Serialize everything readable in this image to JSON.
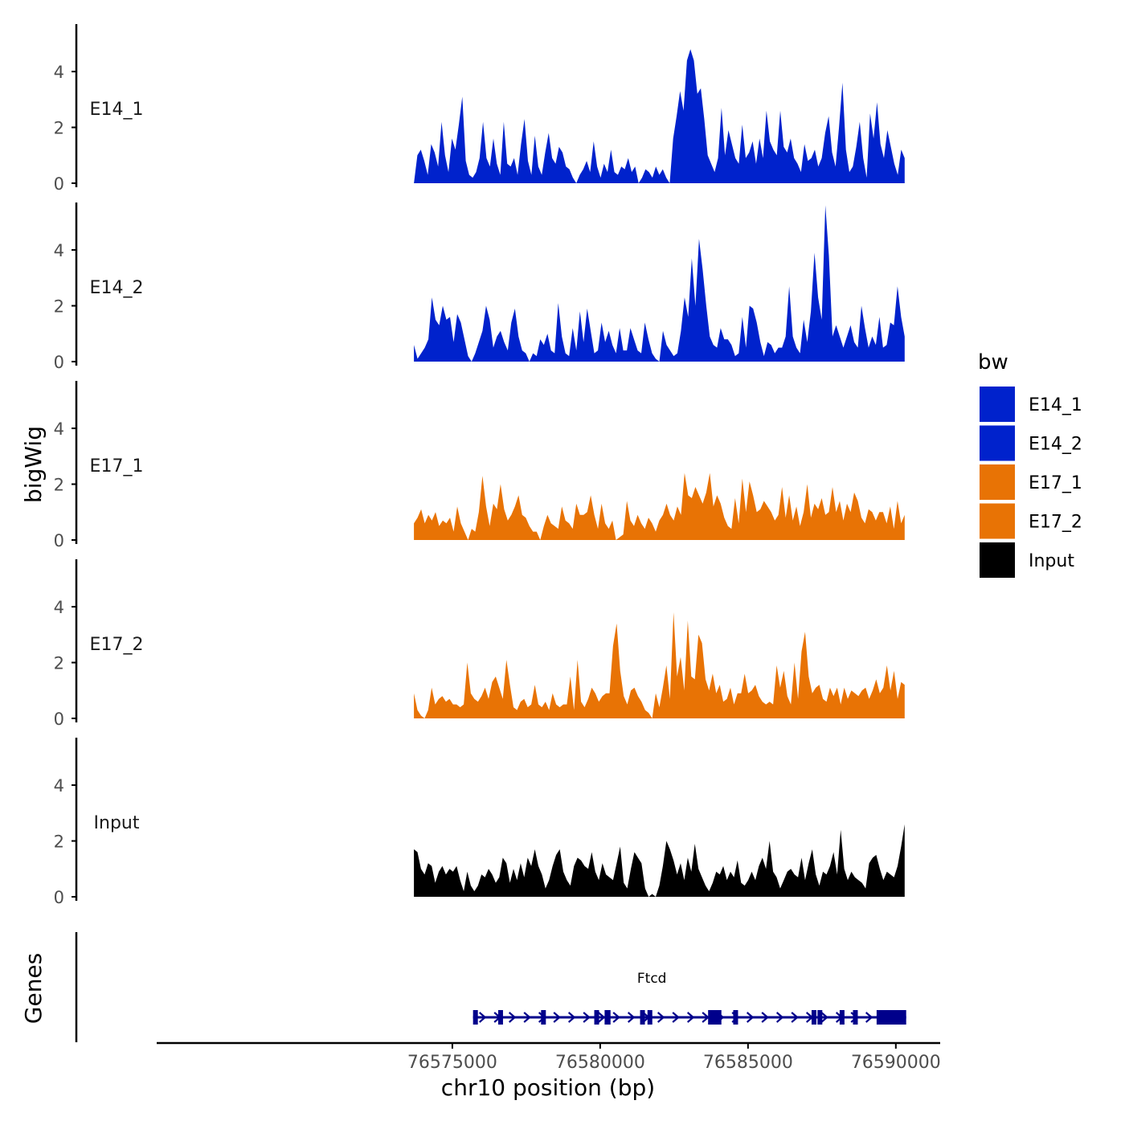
{
  "chart_data": {
    "type": "area",
    "title": "",
    "ylabel": "bigWig",
    "genes_label": "Genes",
    "xlabel": "chr10 position (bp)",
    "xlim": [
      76565000,
      76591500
    ],
    "x_ticks": [
      76575000,
      76580000,
      76585000,
      76590000
    ],
    "x_tick_labels": [
      "76575000",
      "76580000",
      "76585000",
      "76590000"
    ],
    "ylim": [
      0,
      5.7
    ],
    "y_ticks": [
      0,
      2,
      4
    ],
    "y_tick_labels": [
      "0",
      "2",
      "4"
    ],
    "legend": {
      "title": "bw",
      "position": "right",
      "entries": [
        {
          "label": "E14_1",
          "color": "#0022cc"
        },
        {
          "label": "E14_2",
          "color": "#0022cc"
        },
        {
          "label": "E17_1",
          "color": "#e87305"
        },
        {
          "label": "E17_2",
          "color": "#e87305"
        },
        {
          "label": "Input",
          "color": "#000000"
        }
      ]
    },
    "track_range": [
      76573700,
      76590300
    ],
    "series": [
      {
        "name": "E14_1",
        "color": "#0022cc",
        "values": [
          0,
          1.0,
          1.2,
          0.8,
          0.3,
          1.4,
          1.1,
          0.6,
          2.2,
          1.0,
          0.4,
          1.6,
          1.2,
          2.1,
          3.1,
          0.8,
          0.3,
          0.2,
          0.4,
          0.9,
          2.2,
          0.9,
          0.6,
          1.6,
          0.7,
          0.3,
          2.2,
          0.7,
          0.6,
          0.9,
          0.3,
          1.4,
          2.3,
          0.8,
          0.3,
          1.7,
          0.6,
          0.3,
          1.1,
          1.8,
          0.9,
          0.7,
          1.3,
          1.1,
          0.6,
          0.5,
          0.2,
          0,
          0.3,
          0.5,
          0.8,
          0.4,
          1.5,
          0.6,
          0.2,
          0.7,
          0.4,
          1.2,
          0.4,
          0.3,
          0.6,
          0.5,
          0.9,
          0.4,
          0.6,
          0,
          0.2,
          0.5,
          0.4,
          0.2,
          0.6,
          0.3,
          0.5,
          0.2,
          0,
          1.6,
          2.4,
          3.3,
          2.6,
          4.4,
          4.8,
          4.4,
          3.2,
          3.4,
          2.3,
          1.0,
          0.7,
          0.4,
          0.9,
          2.7,
          1.0,
          1.9,
          1.4,
          0.9,
          0.7,
          2.1,
          0.9,
          1.1,
          1.5,
          0.7,
          1.6,
          0.9,
          2.6,
          1.5,
          1.2,
          1.0,
          2.6,
          1.3,
          1.1,
          1.6,
          0.9,
          0.7,
          0.4,
          1.4,
          0.8,
          0.9,
          1.2,
          0.6,
          0.9,
          1.8,
          2.4,
          1.1,
          0.6,
          2.0,
          3.6,
          1.2,
          0.4,
          0.6,
          1.3,
          2.2,
          0.9,
          0.2,
          2.5,
          1.6,
          2.9,
          1.4,
          0.9,
          1.9,
          1.3,
          0.7,
          0.3,
          1.2,
          0.9
        ]
      },
      {
        "name": "E14_2",
        "color": "#0022cc",
        "values": [
          0.6,
          0.1,
          0.3,
          0.5,
          0.8,
          2.3,
          1.5,
          1.3,
          2.0,
          1.5,
          1.6,
          0.7,
          1.7,
          1.4,
          0.8,
          0.2,
          0,
          0.3,
          0.7,
          1.1,
          2.0,
          1.5,
          0.5,
          0.9,
          1.1,
          0.7,
          0.4,
          1.4,
          1.9,
          0.9,
          0.4,
          0.3,
          0,
          0.3,
          0.2,
          0.8,
          0.6,
          1.0,
          0.4,
          0.3,
          2.1,
          0.9,
          0.3,
          0.2,
          1.2,
          0.4,
          1.8,
          0.7,
          1.9,
          1.1,
          0.3,
          0.4,
          1.4,
          0.7,
          1.1,
          0.6,
          0.3,
          1.2,
          0.4,
          0.4,
          1.2,
          0.8,
          0.4,
          0.3,
          1.4,
          0.8,
          0.3,
          0.1,
          0,
          1.1,
          0.6,
          0.4,
          0.2,
          0.3,
          1.1,
          2.3,
          1.6,
          3.7,
          2.0,
          4.4,
          3.3,
          2.0,
          0.9,
          0.6,
          0.5,
          1.2,
          0.8,
          0.8,
          0.6,
          0.2,
          0.3,
          1.6,
          0.5,
          2.0,
          1.9,
          1.4,
          0.7,
          0.2,
          0.7,
          0.6,
          0.3,
          0.5,
          0.5,
          0.9,
          2.7,
          0.9,
          0.5,
          0.3,
          1.5,
          0.7,
          1.8,
          3.9,
          2.3,
          1.5,
          5.6,
          3.8,
          0.9,
          1.3,
          0.9,
          0.5,
          0.9,
          1.3,
          0.7,
          0.5,
          2.0,
          1.2,
          0.5,
          0.9,
          0.6,
          1.6,
          0.5,
          0.6,
          1.4,
          1.3,
          2.7,
          1.6,
          0.9
        ]
      },
      {
        "name": "E17_1",
        "color": "#e87305",
        "values": [
          0.6,
          0.8,
          1.1,
          0.6,
          0.9,
          0.7,
          1.0,
          0.5,
          0.7,
          0.6,
          0.8,
          0.3,
          1.2,
          0.6,
          0.3,
          0,
          0.4,
          0.3,
          1.0,
          2.3,
          1.2,
          0.5,
          1.3,
          1.1,
          2.0,
          1.1,
          0.7,
          0.9,
          1.2,
          1.6,
          0.9,
          0.8,
          0.5,
          0.3,
          0.3,
          0,
          0.5,
          0.9,
          0.6,
          0.5,
          0.4,
          1.2,
          0.7,
          0.6,
          0.4,
          1.3,
          0.9,
          0.9,
          1.0,
          1.6,
          0.9,
          0.4,
          1.3,
          0.6,
          0.4,
          0.7,
          0,
          0.1,
          0.2,
          1.4,
          0.7,
          0.5,
          0.9,
          0.6,
          0.4,
          0.8,
          0.6,
          0.3,
          0.7,
          0.9,
          1.3,
          0.9,
          0.7,
          1.2,
          0.9,
          2.4,
          1.6,
          1.5,
          1.9,
          1.6,
          1.3,
          1.7,
          2.4,
          1.2,
          1.6,
          1.3,
          0.8,
          0.5,
          0.4,
          1.5,
          0.6,
          2.2,
          1.0,
          2.1,
          1.6,
          1.0,
          1.1,
          1.4,
          1.2,
          1.0,
          0.7,
          0.9,
          1.9,
          0.8,
          1.6,
          0.7,
          1.2,
          0.5,
          1.0,
          2.0,
          0.8,
          1.3,
          1.1,
          1.5,
          0.9,
          1.0,
          1.9,
          1.0,
          1.4,
          0.7,
          1.3,
          1.0,
          1.7,
          1.4,
          0.8,
          0.6,
          1.1,
          1.0,
          0.7,
          1.0,
          1.0,
          0.6,
          1.2,
          0.4,
          1.4,
          0.6,
          0.9
        ]
      },
      {
        "name": "E17_2",
        "color": "#e87305",
        "values": [
          0.9,
          0.3,
          0.1,
          0,
          0.3,
          1.1,
          0.5,
          0.7,
          0.8,
          0.6,
          0.7,
          0.5,
          0.5,
          0.4,
          0.5,
          2.0,
          0.9,
          0.7,
          0.6,
          0.8,
          1.1,
          0.7,
          1.3,
          1.5,
          1.1,
          0.7,
          2.1,
          1.2,
          0.4,
          0.3,
          0.6,
          0.7,
          0.4,
          0.5,
          1.2,
          0.5,
          0.4,
          0.6,
          0.3,
          0.9,
          0.5,
          0.4,
          0.5,
          0.5,
          1.5,
          0.3,
          2.1,
          0.6,
          0.4,
          0.7,
          1.1,
          0.9,
          0.6,
          0.8,
          0.9,
          0.9,
          2.6,
          3.4,
          1.7,
          0.8,
          0.5,
          1.0,
          1.1,
          0.8,
          0.6,
          0.3,
          0.2,
          0,
          0.9,
          0.4,
          1.1,
          1.9,
          0.7,
          3.8,
          1.5,
          2.2,
          1.0,
          3.5,
          1.5,
          1.4,
          3.0,
          2.7,
          1.4,
          1.0,
          1.6,
          0.9,
          1.2,
          0.6,
          0.7,
          1.1,
          0.5,
          0.9,
          0.9,
          1.6,
          0.9,
          1.0,
          1.2,
          0.8,
          0.6,
          0.5,
          0.6,
          0.5,
          1.9,
          1.1,
          1.7,
          0.8,
          0.5,
          2.0,
          0.7,
          2.4,
          3.1,
          1.5,
          0.9,
          1.1,
          1.2,
          0.7,
          0.6,
          1.1,
          0.8,
          1.1,
          0.5,
          1.1,
          0.7,
          1.0,
          0.9,
          0.8,
          1.0,
          1.1,
          0.7,
          1.0,
          1.4,
          0.9,
          1.1,
          1.9,
          1.0,
          1.7,
          0.7,
          1.3,
          1.2
        ]
      },
      {
        "name": "Input",
        "color": "#000000",
        "values": [
          1.7,
          1.6,
          1.0,
          0.8,
          1.2,
          1.1,
          0.5,
          0.9,
          1.1,
          0.8,
          1.0,
          0.9,
          1.1,
          0.6,
          0.2,
          0.9,
          0.4,
          0.2,
          0.4,
          0.8,
          0.7,
          1.0,
          0.8,
          0.5,
          0.7,
          1.4,
          1.2,
          0.5,
          1.0,
          0.6,
          1.2,
          0.7,
          1.4,
          1.1,
          1.7,
          1.1,
          0.8,
          0.3,
          0.6,
          1.1,
          1.5,
          1.7,
          0.9,
          0.6,
          0.4,
          1.1,
          1.4,
          1.3,
          1.1,
          1.0,
          1.6,
          0.9,
          0.6,
          1.2,
          0.8,
          0.7,
          0.6,
          1.2,
          1.8,
          0.5,
          0.3,
          1.0,
          1.6,
          1.4,
          1.2,
          0.3,
          0,
          0.1,
          0,
          0.4,
          1.1,
          2.0,
          1.7,
          1.3,
          0.8,
          1.2,
          0.6,
          1.4,
          0.9,
          1.9,
          1.0,
          0.7,
          0.4,
          0.2,
          0.5,
          0.9,
          0.8,
          1.1,
          0.6,
          0.9,
          0.7,
          1.3,
          0.5,
          0.4,
          0.6,
          0.9,
          0.6,
          1.1,
          1.4,
          1.0,
          2.0,
          0.9,
          0.7,
          0.3,
          0.6,
          0.9,
          1.0,
          0.8,
          0.7,
          1.4,
          0.6,
          1.2,
          1.7,
          0.8,
          0.4,
          0.9,
          0.8,
          1.1,
          1.6,
          0.8,
          2.4,
          1.0,
          0.6,
          0.9,
          0.7,
          0.6,
          0.5,
          0.3,
          1.2,
          1.4,
          1.5,
          1.0,
          0.6,
          0.9,
          0.8,
          0.7,
          1.1,
          1.8,
          2.6
        ]
      }
    ],
    "gene": {
      "name": "Ftcd",
      "start": 76575700,
      "end": 76590350,
      "color": "#00008b",
      "strand": "+",
      "exons": [
        [
          76575700,
          76575790
        ],
        [
          76576550,
          76576700
        ],
        [
          76578000,
          76578100
        ],
        [
          76579800,
          76579900
        ],
        [
          76580150,
          76580350
        ],
        [
          76581350,
          76581450
        ],
        [
          76581600,
          76581750
        ],
        [
          76583650,
          76584100
        ],
        [
          76584500,
          76584650
        ],
        [
          76587150,
          76587220
        ],
        [
          76587350,
          76587480
        ],
        [
          76588100,
          76588200
        ],
        [
          76588550,
          76588700
        ],
        [
          76589350,
          76589700
        ],
        [
          76589650,
          76590350
        ]
      ]
    }
  }
}
